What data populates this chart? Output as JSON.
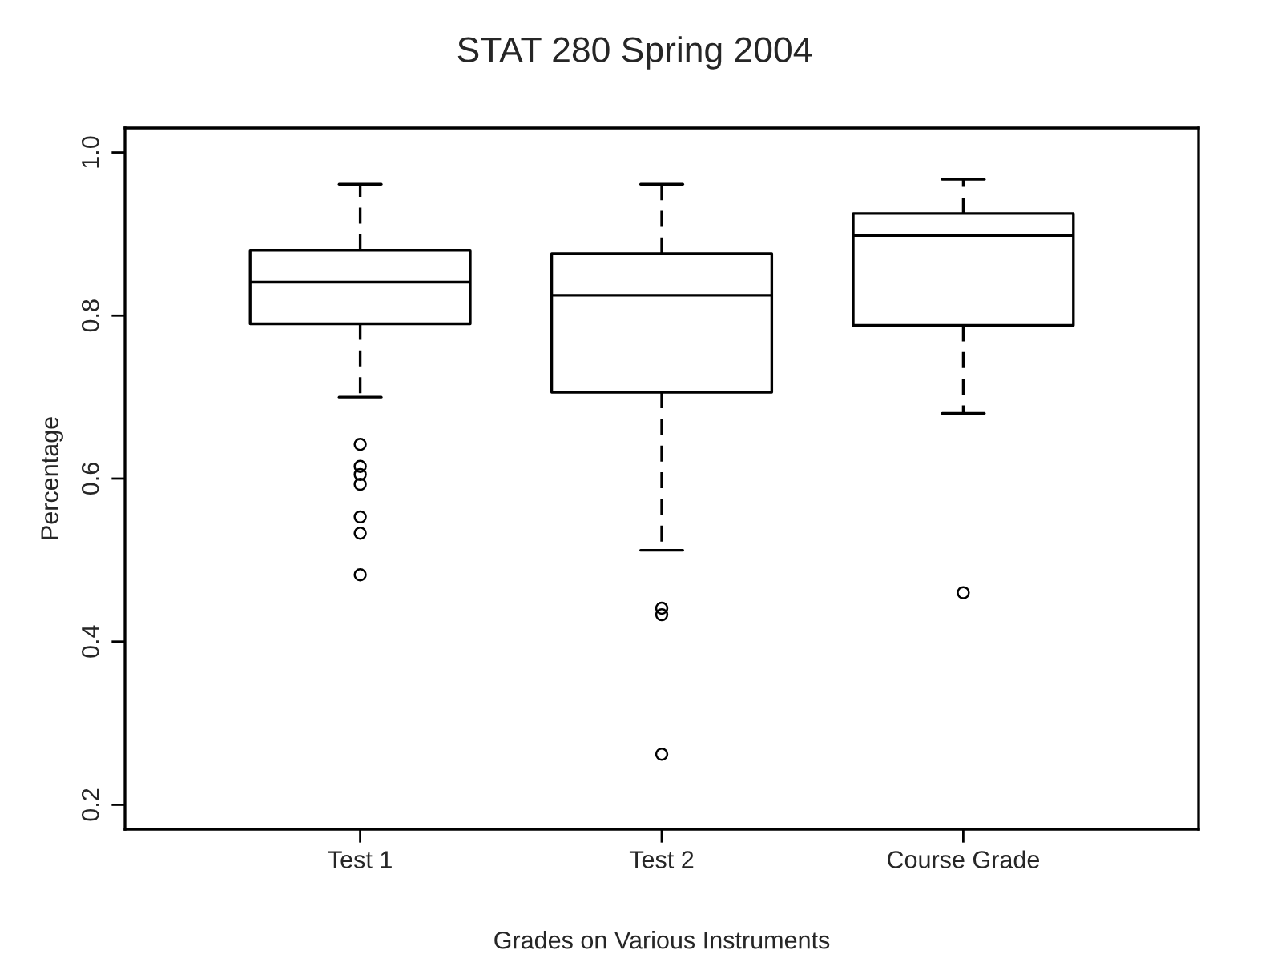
{
  "chart_data": {
    "type": "box",
    "title": "STAT 280 Spring 2004",
    "xlabel": "Grades on Various Instruments",
    "ylabel": "Percentage",
    "categories": [
      "Test 1",
      "Test 2",
      "Course Grade"
    ],
    "boxes": [
      {
        "low": 0.7,
        "q1": 0.79,
        "median": 0.841,
        "q3": 0.88,
        "high": 0.961,
        "outliers": [
          0.642,
          0.615,
          0.605,
          0.593,
          0.553,
          0.533,
          0.482
        ]
      },
      {
        "low": 0.512,
        "q1": 0.706,
        "median": 0.825,
        "q3": 0.876,
        "high": 0.961,
        "outliers": [
          0.441,
          0.433,
          0.262
        ]
      },
      {
        "low": 0.68,
        "q1": 0.788,
        "median": 0.898,
        "q3": 0.925,
        "high": 0.967,
        "outliers": [
          0.46
        ]
      }
    ],
    "ylim": [
      0.17,
      1.03
    ],
    "yticks": [
      0.2,
      0.4,
      0.6,
      0.8,
      {
        "value": 1.0,
        "label": "1.0"
      }
    ],
    "grid": false,
    "legend": false
  }
}
